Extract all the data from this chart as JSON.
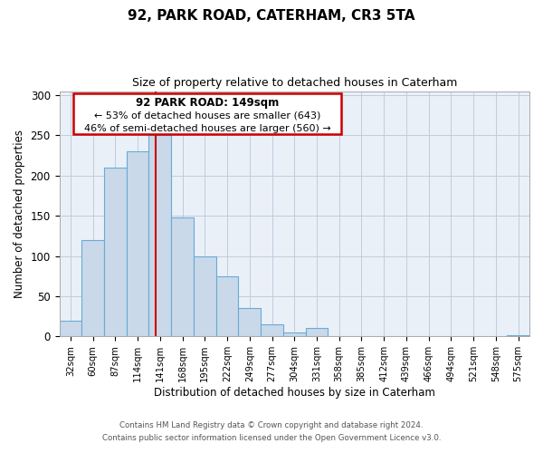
{
  "title": "92, PARK ROAD, CATERHAM, CR3 5TA",
  "subtitle": "Size of property relative to detached houses in Caterham",
  "xlabel": "Distribution of detached houses by size in Caterham",
  "ylabel": "Number of detached properties",
  "bar_labels": [
    "32sqm",
    "60sqm",
    "87sqm",
    "114sqm",
    "141sqm",
    "168sqm",
    "195sqm",
    "222sqm",
    "249sqm",
    "277sqm",
    "304sqm",
    "331sqm",
    "358sqm",
    "385sqm",
    "412sqm",
    "439sqm",
    "466sqm",
    "494sqm",
    "521sqm",
    "548sqm",
    "575sqm"
  ],
  "bar_values": [
    20,
    120,
    210,
    230,
    250,
    148,
    100,
    75,
    35,
    15,
    5,
    10,
    0,
    0,
    0,
    0,
    0,
    0,
    0,
    0,
    2
  ],
  "bar_color": "#c9d9ea",
  "bar_edge_color": "#6aaad4",
  "vline_color": "#cc0000",
  "annotation_title": "92 PARK ROAD: 149sqm",
  "annotation_line1": "← 53% of detached houses are smaller (643)",
  "annotation_line2": "46% of semi-detached houses are larger (560) →",
  "annotation_box_color": "#ffffff",
  "annotation_box_edge": "#cc0000",
  "ylim": [
    0,
    305
  ],
  "yticks": [
    0,
    50,
    100,
    150,
    200,
    250,
    300
  ],
  "grid_color": "#c0ccdd",
  "background_color": "#eaf0f8",
  "footnote1": "Contains HM Land Registry data © Crown copyright and database right 2024.",
  "footnote2": "Contains public sector information licensed under the Open Government Licence v3.0."
}
